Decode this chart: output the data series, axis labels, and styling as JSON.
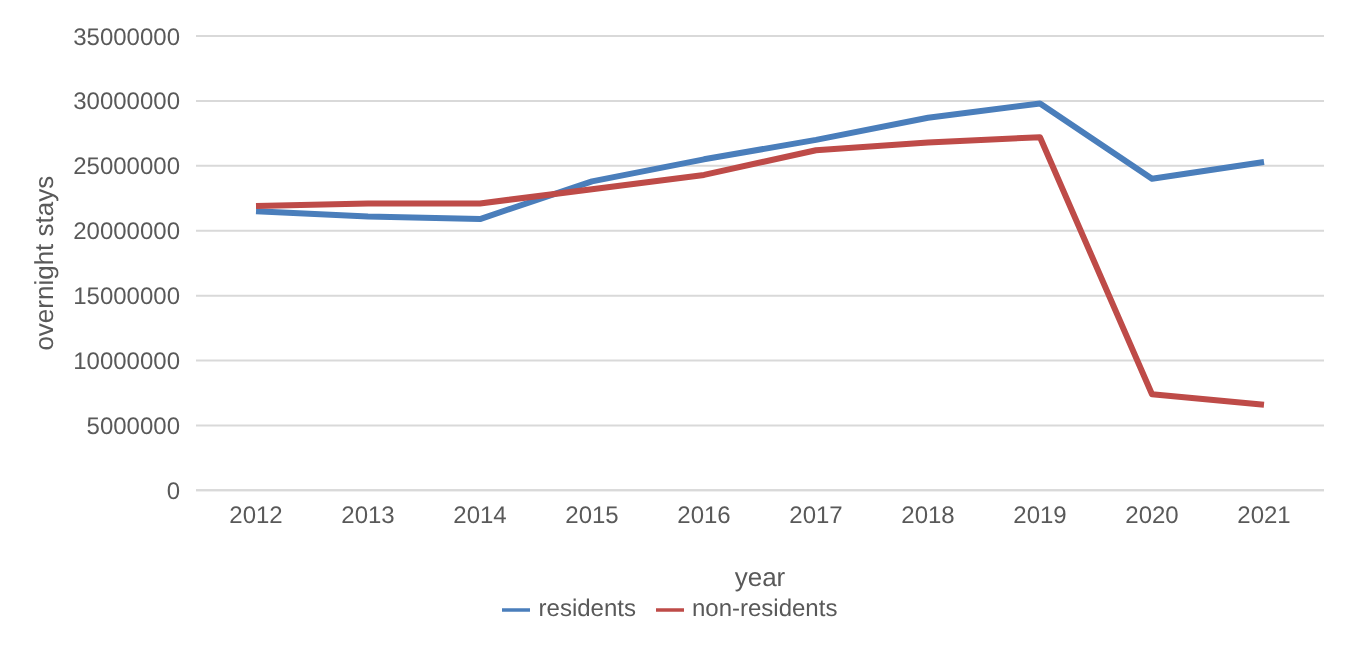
{
  "chart_data": {
    "type": "line",
    "xlabel": "year",
    "ylabel": "overnight stays",
    "categories": [
      "2012",
      "2013",
      "2014",
      "2015",
      "2016",
      "2017",
      "2018",
      "2019",
      "2020",
      "2021"
    ],
    "series": [
      {
        "name": "residents",
        "color": "#4a7ebb",
        "values": [
          21500000,
          21100000,
          20900000,
          23800000,
          25500000,
          27000000,
          28700000,
          29800000,
          24000000,
          25300000
        ]
      },
      {
        "name": "non-residents",
        "color": "#be4b48",
        "values": [
          21900000,
          22100000,
          22100000,
          23200000,
          24300000,
          26200000,
          26800000,
          27200000,
          7400000,
          6600000
        ]
      }
    ],
    "ylim": [
      0,
      35000000
    ],
    "yticks": [
      0,
      5000000,
      10000000,
      15000000,
      20000000,
      25000000,
      30000000,
      35000000
    ],
    "grid": "y",
    "legend": "bottom",
    "marker": "none",
    "line_style": "solid"
  }
}
